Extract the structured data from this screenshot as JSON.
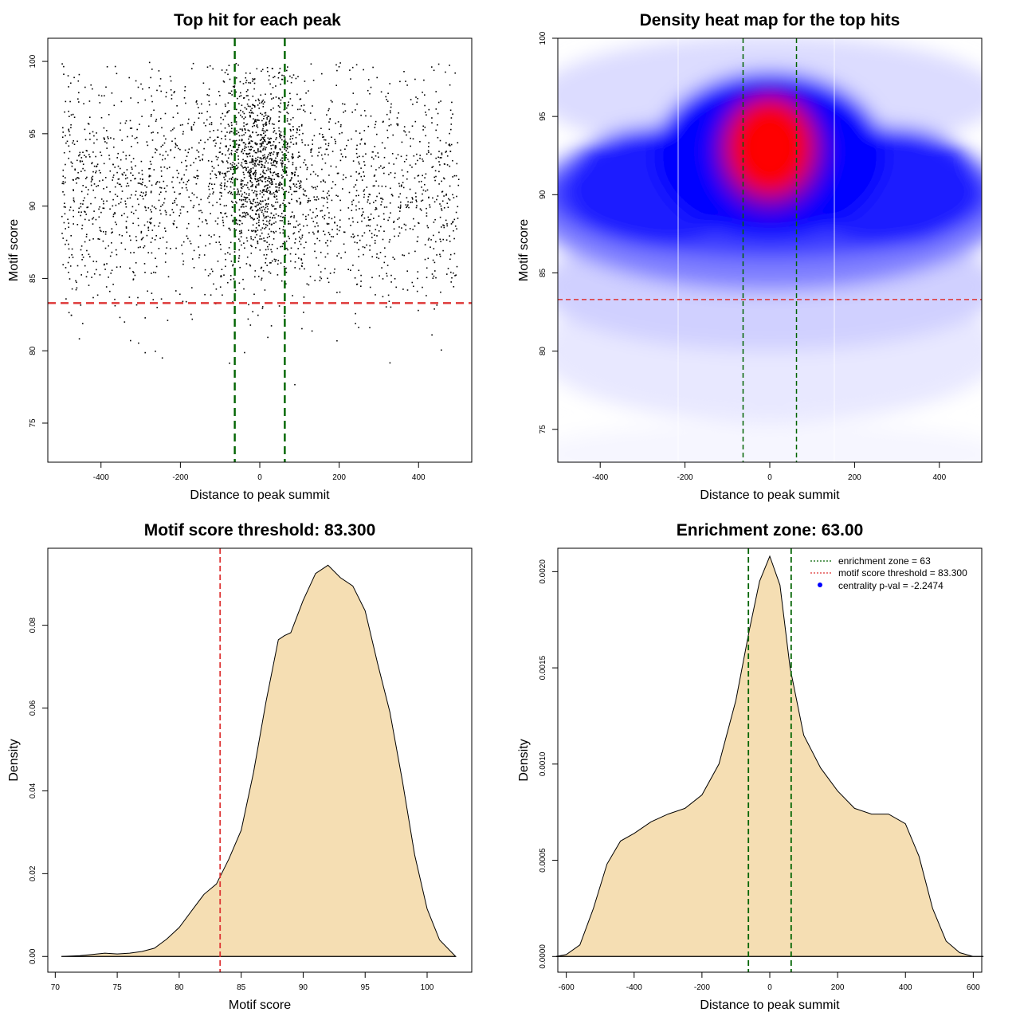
{
  "colors": {
    "threshold": "#dd3333",
    "zone": "#006400",
    "density_fill": "#f5deb3",
    "heat_low": "#ffffff",
    "heat_mid": "#0000ff",
    "heat_high": "#ff0000",
    "pval_point": "#0000ff"
  },
  "chart_data": [
    {
      "type": "scatter",
      "title": "Top hit for each peak",
      "xlabel": "Distance to peak summit",
      "ylabel": "Motif score",
      "xlim": [
        -534,
        534
      ],
      "ylim": [
        72.3,
        101.6
      ],
      "xticks": [
        -400,
        -200,
        0,
        200,
        400
      ],
      "yticks": [
        75,
        80,
        85,
        90,
        95,
        100
      ],
      "point_count_approx": 3000,
      "x_range_points": [
        -500,
        500
      ],
      "hlines": [
        {
          "y": 83.3,
          "color": "#dd3333",
          "style": "dashed"
        }
      ],
      "vlines": [
        {
          "x": -63,
          "color": "#006400",
          "style": "dashed"
        },
        {
          "x": 63,
          "color": "#006400",
          "style": "dashed"
        }
      ],
      "grid": false
    },
    {
      "type": "heatmap",
      "title": "Density heat map for the top hits",
      "xlabel": "Distance to peak summit",
      "ylabel": "Motif score",
      "xlim": [
        -500,
        500
      ],
      "ylim": [
        72.9,
        100
      ],
      "xticks": [
        -400,
        -200,
        0,
        200,
        400
      ],
      "yticks": [
        75,
        80,
        85,
        90,
        95,
        100
      ],
      "color_scale": [
        "#ffffff",
        "#0000ff",
        "#ff0000"
      ],
      "peak": {
        "x": 0,
        "y": 93
      },
      "hlines": [
        {
          "y": 83.3,
          "color": "#dd3333",
          "style": "dashed"
        }
      ],
      "vlines": [
        {
          "x": -63,
          "color": "#006400",
          "style": "dashed"
        },
        {
          "x": 63,
          "color": "#006400",
          "style": "dashed"
        }
      ]
    },
    {
      "type": "area",
      "title": "Motif score threshold: 83.300",
      "xlabel": "Motif score",
      "ylabel": "Density",
      "xlim": [
        69.4,
        103.6
      ],
      "ylim": [
        -0.0038,
        0.0986
      ],
      "xticks": [
        70,
        75,
        80,
        85,
        90,
        95,
        100
      ],
      "yticks": [
        0.0,
        0.02,
        0.04,
        0.06,
        0.08
      ],
      "ytick_labels": [
        "0.00",
        "0.02",
        "0.04",
        "0.06",
        "0.08"
      ],
      "x": [
        70.5,
        72,
        73,
        74,
        75,
        76,
        77,
        78,
        79,
        80,
        81,
        82,
        83,
        84,
        85,
        86,
        87,
        88,
        88.5,
        89,
        90,
        91,
        92,
        93,
        94,
        95,
        96,
        97,
        98,
        99,
        100,
        101,
        102.3
      ],
      "y": [
        0.0,
        0.0002,
        0.0005,
        0.0008,
        0.0006,
        0.0008,
        0.0012,
        0.002,
        0.0042,
        0.007,
        0.011,
        0.015,
        0.0175,
        0.0235,
        0.0305,
        0.0445,
        0.0615,
        0.0765,
        0.0775,
        0.0782,
        0.086,
        0.0925,
        0.0945,
        0.0915,
        0.0895,
        0.0835,
        0.0708,
        0.059,
        0.0425,
        0.0245,
        0.0115,
        0.004,
        0.0
      ],
      "vlines": [
        {
          "x": 83.3,
          "color": "#dd3333",
          "style": "dashed"
        }
      ],
      "fill": "#f5deb3"
    },
    {
      "type": "area",
      "title": "Enrichment zone: 63.00",
      "xlabel": "Distance to peak summit",
      "ylabel": "Density",
      "xlim": [
        -625,
        625
      ],
      "ylim": [
        -8.16e-05,
        0.0021216
      ],
      "xticks": [
        -600,
        -400,
        -200,
        0,
        200,
        400,
        600
      ],
      "yticks": [
        0.0,
        0.0005,
        0.001,
        0.0015,
        0.002
      ],
      "ytick_labels": [
        "0.0000",
        "0.0005",
        "0.0010",
        "0.0015",
        "0.0020"
      ],
      "x": [
        -630,
        -600,
        -560,
        -520,
        -480,
        -440,
        -400,
        -350,
        -300,
        -250,
        -200,
        -150,
        -100,
        -60,
        -30,
        0,
        30,
        60,
        100,
        150,
        200,
        250,
        300,
        350,
        400,
        440,
        480,
        520,
        560,
        600,
        630
      ],
      "y": [
        0.0,
        1e-05,
        6e-05,
        0.00025,
        0.00048,
        0.0006,
        0.00064,
        0.0007,
        0.00074,
        0.00077,
        0.00084,
        0.001,
        0.00133,
        0.0017,
        0.00195,
        0.00208,
        0.00193,
        0.0015,
        0.00115,
        0.00098,
        0.00086,
        0.00077,
        0.00074,
        0.00074,
        0.00069,
        0.00052,
        0.00025,
        8e-05,
        2e-05,
        0.0,
        0.0
      ],
      "vlines": [
        {
          "x": -63,
          "color": "#006400",
          "style": "dashed"
        },
        {
          "x": 63,
          "color": "#006400",
          "style": "dashed"
        }
      ],
      "legend": {
        "position": "top-right",
        "entries": [
          {
            "label": "enrichment zone = 63",
            "color": "#006400",
            "marker": "dotted-line"
          },
          {
            "label": "motif score threshold = 83.300",
            "color": "#dd3333",
            "marker": "dotted-line"
          },
          {
            "label": "centrality p-val = -2.2474",
            "color": "#0000ff",
            "marker": "point"
          }
        ]
      },
      "fill": "#f5deb3"
    }
  ]
}
